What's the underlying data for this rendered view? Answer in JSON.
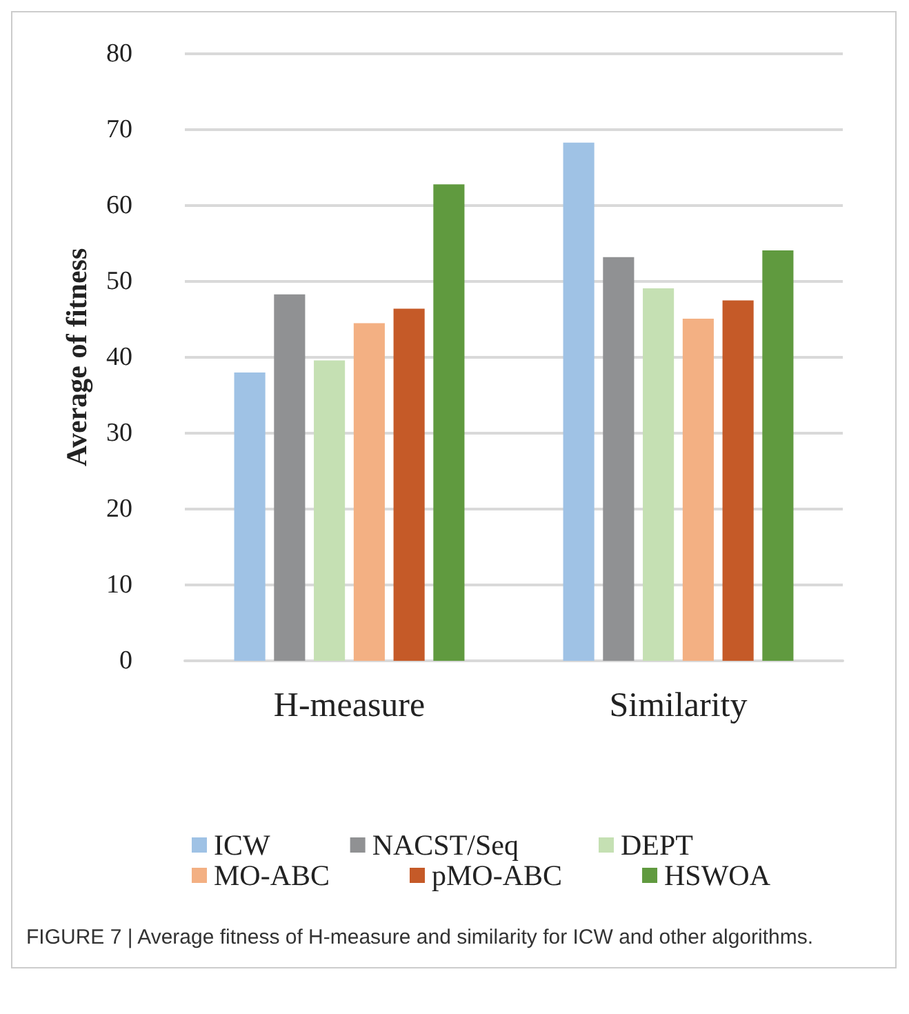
{
  "chart_data": {
    "type": "bar",
    "ylabel": "Average of fitness",
    "categories": [
      "H-measure",
      "Similarity"
    ],
    "series": [
      {
        "name": "ICW",
        "color": "#9fc2e5",
        "values": [
          38.0,
          68.3
        ]
      },
      {
        "name": "NACST/Seq",
        "color": "#909193",
        "values": [
          48.3,
          53.2
        ]
      },
      {
        "name": "DEPT",
        "color": "#c5e0b3",
        "values": [
          39.6,
          49.1
        ]
      },
      {
        "name": "MO-ABC",
        "color": "#f3b083",
        "values": [
          44.5,
          45.1
        ]
      },
      {
        "name": "pMO-ABC",
        "color": "#c55a28",
        "values": [
          46.4,
          47.5
        ]
      },
      {
        "name": "HSWOA",
        "color": "#609a3f",
        "values": [
          62.8,
          54.1
        ]
      }
    ],
    "ylim": [
      0,
      80
    ],
    "yticks": [
      0,
      10,
      20,
      30,
      40,
      50,
      60,
      70,
      80
    ],
    "grid": "y",
    "legend": "bottom",
    "annotations": [
      "FIGURE 7 | Average fitness of H-measure and similarity for ICW and other algorithms."
    ]
  }
}
